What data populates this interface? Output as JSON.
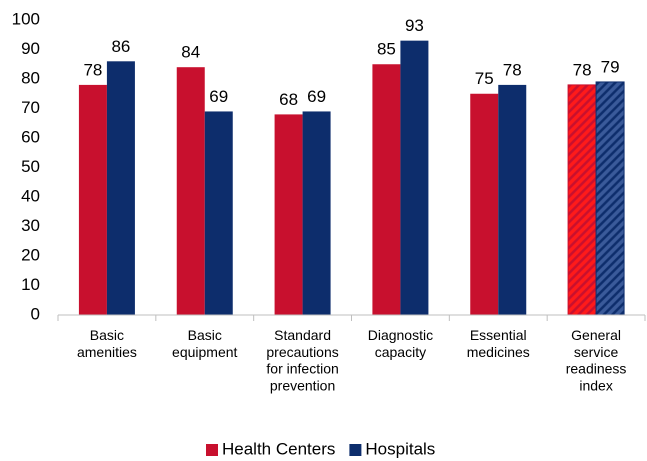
{
  "chart_data": {
    "type": "bar",
    "categories": [
      "Basic\namenities",
      "Basic\nequipment",
      "Standard\nprecautions\nfor infection\nprevention",
      "Diagnostic\ncapacity",
      "Essential\nmedicines",
      "General\nservice\nreadiness\nindex"
    ],
    "series": [
      {
        "name": "Health Centers",
        "color": "#c8102e",
        "hatch_color": "#ff1a1a",
        "values": [
          78,
          84,
          68,
          85,
          75,
          78
        ]
      },
      {
        "name": "Hospitals",
        "color": "#0d2d6c",
        "hatch_color": "#3a5a9a",
        "values": [
          86,
          69,
          69,
          93,
          78,
          79
        ]
      }
    ],
    "hatched_categories": [
      5
    ],
    "ylim": [
      0,
      100
    ],
    "yticks": [
      0,
      10,
      20,
      30,
      40,
      50,
      60,
      70,
      80,
      90,
      100
    ],
    "grid": false,
    "legend": "bottom"
  }
}
